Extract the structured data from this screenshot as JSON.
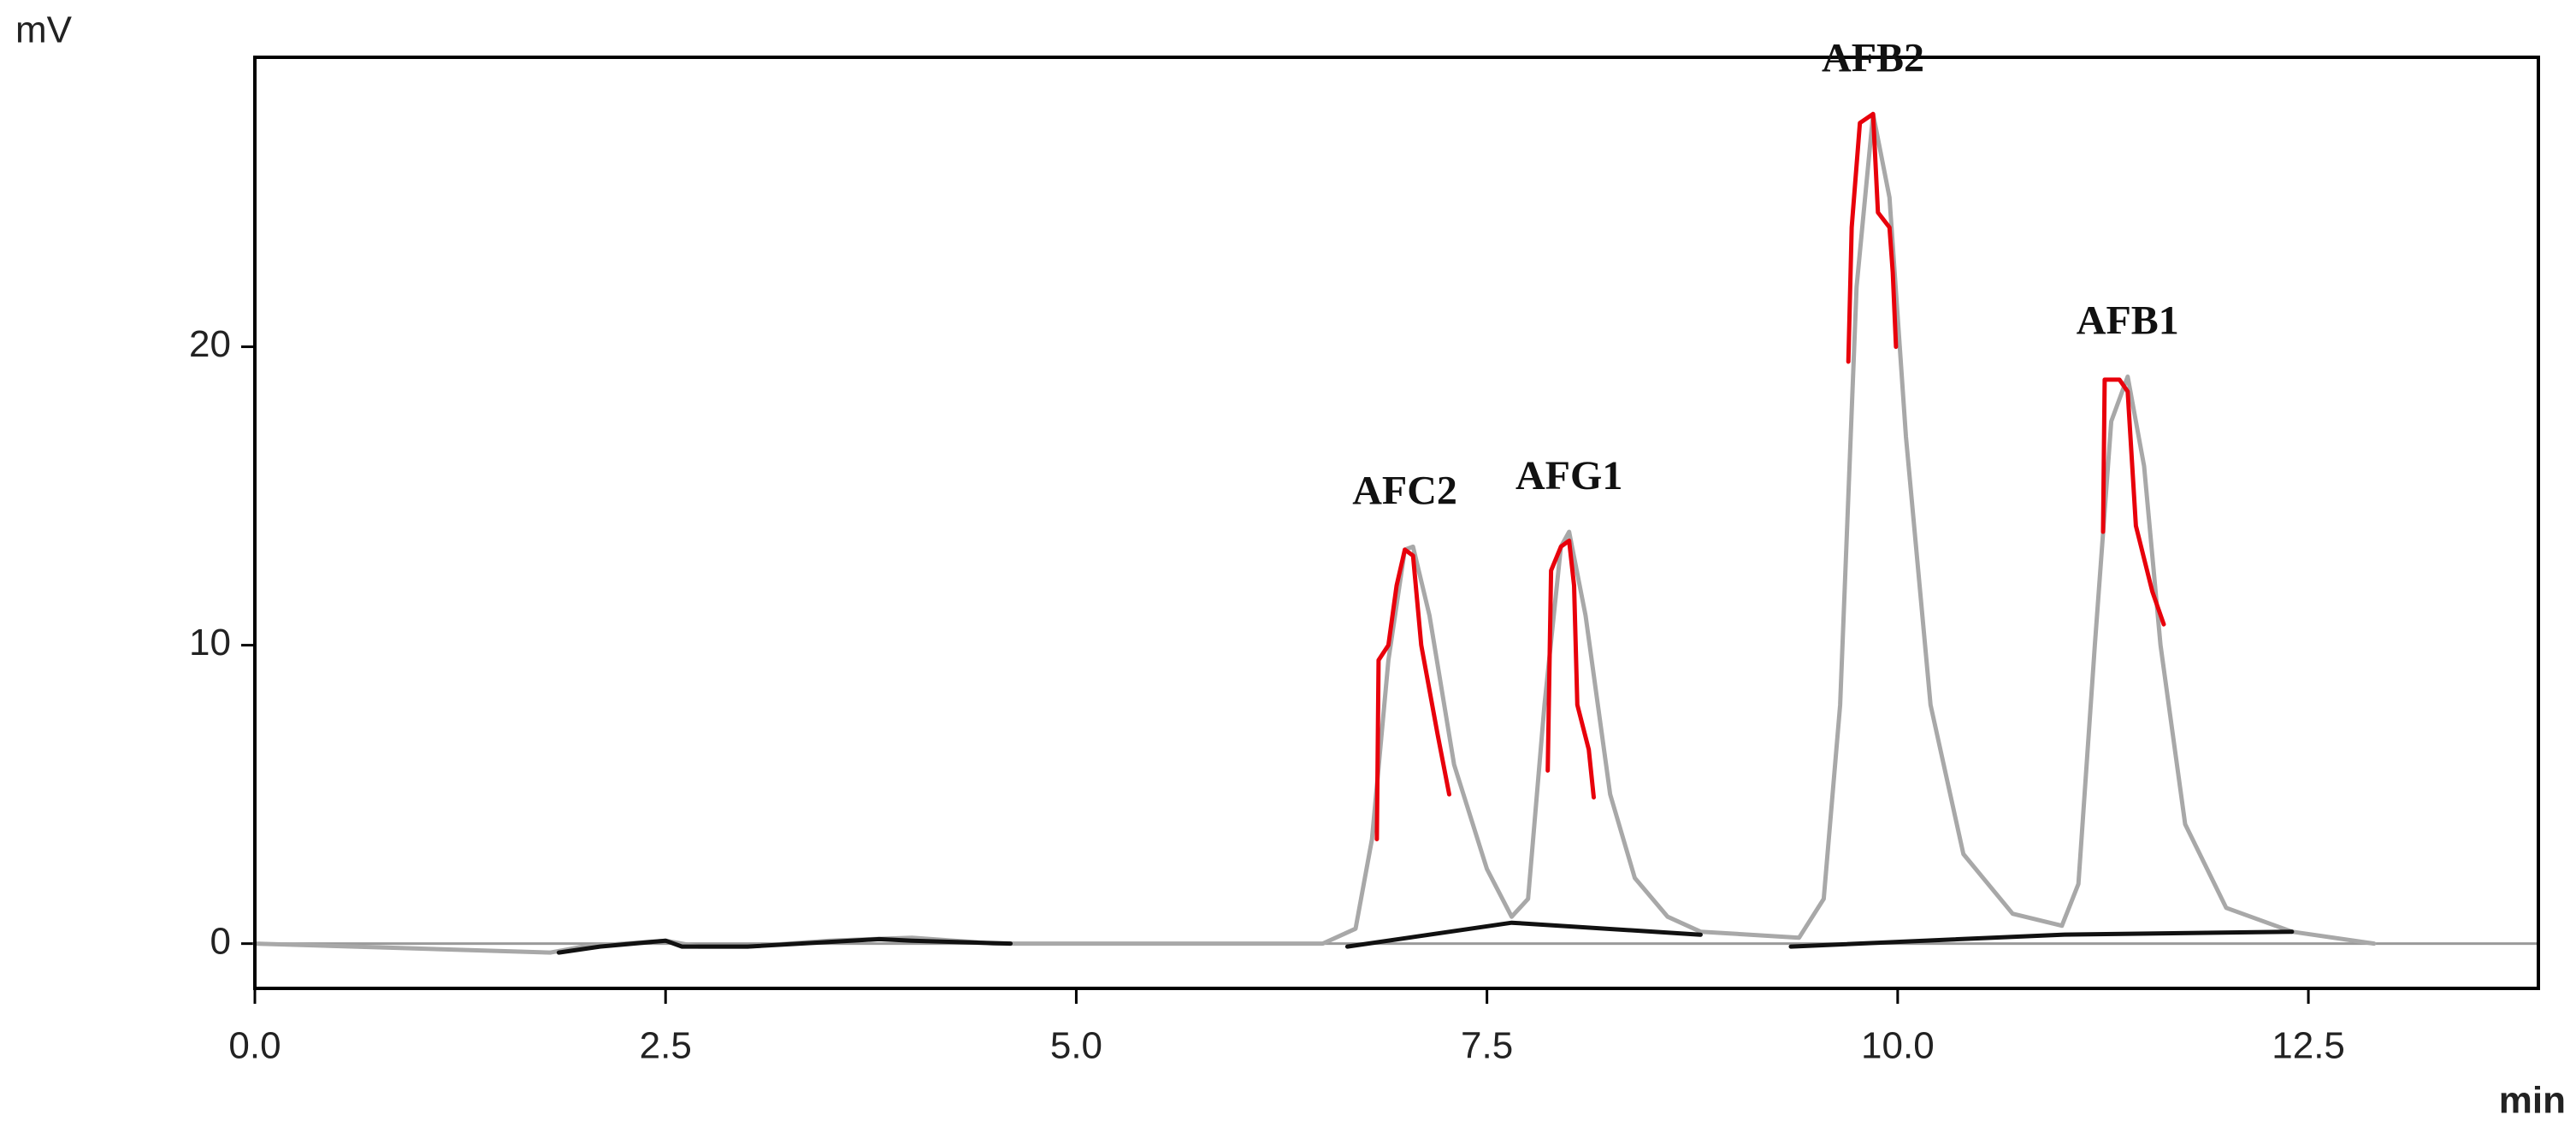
{
  "chart_data": {
    "type": "line",
    "x_label": "min",
    "y_label": "mV",
    "xlim": [
      0,
      13.9
    ],
    "ylim": [
      -1.5,
      29.7
    ],
    "xticks": [
      {
        "value": 0,
        "label": "0.0"
      },
      2.5,
      {
        "value": 5,
        "label": "5.0"
      },
      7.5,
      {
        "value": 10,
        "label": "10.0"
      },
      12.5
    ],
    "yticks": [
      0,
      10,
      20
    ],
    "grid": false,
    "zero_line": true,
    "series": [
      {
        "color": "#a8a8a8",
        "x": [
          0,
          1.8,
          2.0,
          2.5,
          2.7,
          3.0,
          3.5,
          4.0,
          4.5,
          6.5,
          6.7,
          6.8,
          6.9,
          7.0,
          7.05,
          7.15,
          7.3,
          7.5,
          7.65,
          7.75,
          7.85,
          7.95,
          8.0,
          8.1,
          8.25,
          8.4,
          8.6,
          8.8,
          9.4,
          9.55,
          9.65,
          9.75,
          9.85,
          9.95,
          10.05,
          10.2,
          10.4,
          10.7,
          11.0,
          11.1,
          11.2,
          11.3,
          11.4,
          11.5,
          11.6,
          11.75,
          12.0,
          12.4,
          12.9
        ],
        "values": [
          0,
          -0.3,
          -0.1,
          0.1,
          -0.1,
          -0.1,
          0.1,
          0.2,
          0.0,
          0,
          0.5,
          3.5,
          9.5,
          13.2,
          13.3,
          11,
          6,
          2.5,
          0.9,
          1.5,
          8,
          13.3,
          13.8,
          11,
          5,
          2.2,
          0.9,
          0.4,
          0.2,
          1.5,
          8,
          22,
          27.8,
          25,
          17,
          8,
          3,
          1,
          0.6,
          2,
          10,
          17.5,
          19,
          16,
          10,
          4,
          1.2,
          0.4,
          0
        ]
      },
      {
        "color": "#e8000b",
        "x": [
          6.83,
          6.84,
          6.9,
          6.95,
          7.0,
          7.05,
          7.1,
          7.2,
          7.27
        ],
        "values": [
          3.5,
          9.5,
          10,
          12,
          13.2,
          13.0,
          10,
          7,
          5
        ]
      },
      {
        "color": "#e8000b",
        "x": [
          7.87,
          7.89,
          7.95,
          8.0,
          8.03,
          8.05,
          8.12,
          8.15
        ],
        "values": [
          5.8,
          12.5,
          13.3,
          13.5,
          12,
          8,
          6.5,
          4.9
        ]
      },
      {
        "color": "#e8000b",
        "x": [
          9.7,
          9.72,
          9.77,
          9.85,
          9.88,
          9.95,
          9.97,
          9.99
        ],
        "values": [
          19.5,
          24,
          27.5,
          27.8,
          24.5,
          24,
          22.5,
          20
        ]
      },
      {
        "color": "#e8000b",
        "x": [
          11.25,
          11.26,
          11.35,
          11.4,
          11.45,
          11.55,
          11.62
        ],
        "values": [
          13.8,
          18.9,
          18.9,
          18.5,
          14,
          11.8,
          10.7
        ]
      },
      {
        "color": "#111111",
        "x": [
          1.85,
          2.1,
          2.5,
          2.6,
          3.0,
          3.8,
          4.0,
          4.6
        ],
        "values": [
          -0.3,
          -0.1,
          0.1,
          -0.1,
          -0.1,
          0.15,
          0.1,
          0.0
        ]
      },
      {
        "color": "#111111",
        "x": [
          6.65,
          7.65,
          8.8
        ],
        "values": [
          -0.1,
          0.7,
          0.3
        ]
      },
      {
        "color": "#111111",
        "x": [
          9.35,
          11.0,
          12.4
        ],
        "values": [
          -0.1,
          0.3,
          0.4
        ]
      }
    ],
    "annotations": [
      {
        "text": "AFC2",
        "x": 7.0,
        "y": 13.3
      },
      {
        "text": "AFG1",
        "x": 8.0,
        "y": 13.8
      },
      {
        "text": "AFB2",
        "x": 9.85,
        "y": 27.8
      },
      {
        "text": "AFB1",
        "x": 11.4,
        "y": 19.0
      }
    ]
  }
}
